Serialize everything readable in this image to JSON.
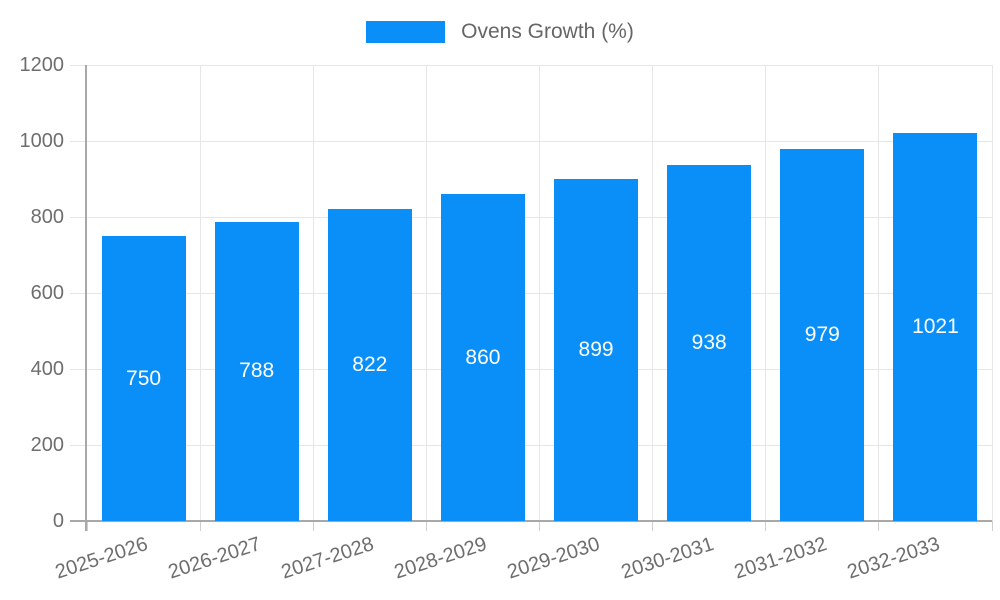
{
  "chart_data": {
    "type": "bar",
    "title": "",
    "legend_label": "Ovens Growth (%)",
    "legend_position": "top",
    "categories": [
      "2025-2026",
      "2026-2027",
      "2027-2028",
      "2028-2029",
      "2029-2030",
      "2030-2031",
      "2031-2032",
      "2032-2033"
    ],
    "values": [
      750,
      788,
      822,
      860,
      899,
      938,
      979,
      1021
    ],
    "xlabel": "",
    "ylabel": "",
    "ylim": [
      0,
      1200
    ],
    "yticks": [
      0,
      200,
      400,
      600,
      800,
      1000,
      1200
    ],
    "grid": true,
    "colors": {
      "bar": "#0a8ff8",
      "grid": "#e6e6e6",
      "axis": "#a8a8a8",
      "tick_mark": "#cfcfcf",
      "tick_text": "#6e6e6e",
      "value_label": "#ffffff",
      "legend_text": "#666666"
    }
  }
}
